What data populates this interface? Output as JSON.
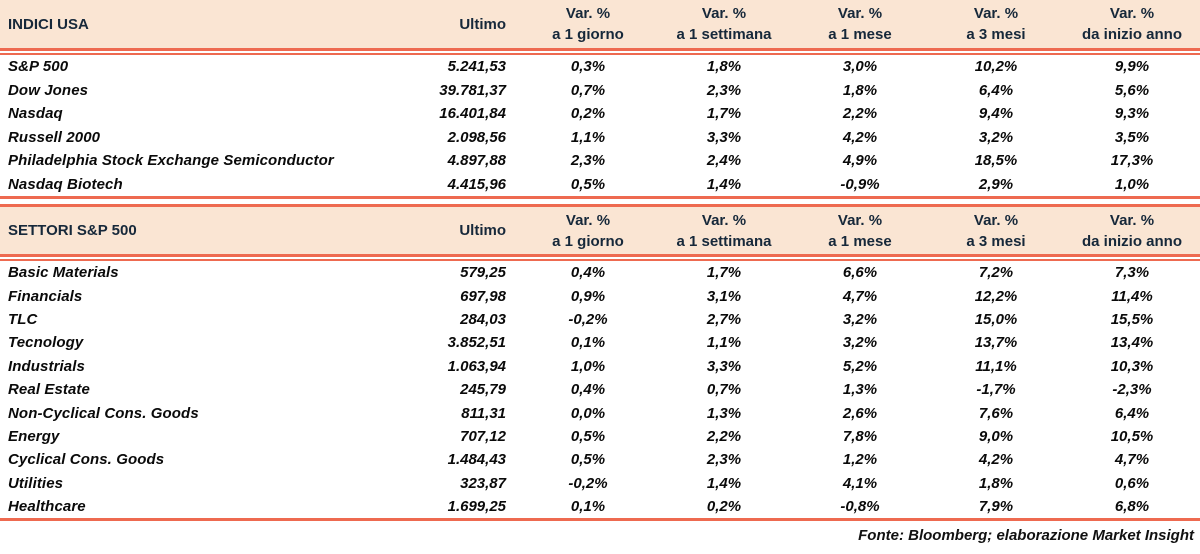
{
  "colors": {
    "header_background": "#fae5d3",
    "rule_salmon": "#ee6a50",
    "header_text": "#16283a",
    "body_text": "#0a0a0a"
  },
  "chart_data": [
    {
      "type": "table",
      "title": "INDICI USA",
      "value_column": "Ultimo",
      "var_column_top": "Var. %",
      "var_column_subs": [
        "a 1 giorno",
        "a 1 settimana",
        "a 1 mese",
        "a 3 mesi",
        "da inizio anno"
      ],
      "rows": [
        {
          "name": "S&P 500",
          "ultimo": "5.241,53",
          "vars": [
            "0,3%",
            "1,8%",
            "3,0%",
            "10,2%",
            "9,9%"
          ]
        },
        {
          "name": "Dow Jones",
          "ultimo": "39.781,37",
          "vars": [
            "0,7%",
            "2,3%",
            "1,8%",
            "6,4%",
            "5,6%"
          ]
        },
        {
          "name": "Nasdaq",
          "ultimo": "16.401,84",
          "vars": [
            "0,2%",
            "1,7%",
            "2,2%",
            "9,4%",
            "9,3%"
          ]
        },
        {
          "name": "Russell 2000",
          "ultimo": "2.098,56",
          "vars": [
            "1,1%",
            "3,3%",
            "4,2%",
            "3,2%",
            "3,5%"
          ]
        },
        {
          "name": "Philadelphia Stock Exchange Semiconductor",
          "ultimo": "4.897,88",
          "vars": [
            "2,3%",
            "2,4%",
            "4,9%",
            "18,5%",
            "17,3%"
          ]
        },
        {
          "name": "Nasdaq Biotech",
          "ultimo": "4.415,96",
          "vars": [
            "0,5%",
            "1,4%",
            "-0,9%",
            "2,9%",
            "1,0%"
          ]
        }
      ]
    },
    {
      "type": "table",
      "title": "SETTORI S&P 500",
      "value_column": "Ultimo",
      "var_column_top": "Var. %",
      "var_column_subs": [
        "a 1 giorno",
        "a 1 settimana",
        "a 1 mese",
        "a 3 mesi",
        "da inizio anno"
      ],
      "rows": [
        {
          "name": "Basic Materials",
          "ultimo": "579,25",
          "vars": [
            "0,4%",
            "1,7%",
            "6,6%",
            "7,2%",
            "7,3%"
          ]
        },
        {
          "name": "Financials",
          "ultimo": "697,98",
          "vars": [
            "0,9%",
            "3,1%",
            "4,7%",
            "12,2%",
            "11,4%"
          ]
        },
        {
          "name": "TLC",
          "ultimo": "284,03",
          "vars": [
            "-0,2%",
            "2,7%",
            "3,2%",
            "15,0%",
            "15,5%"
          ]
        },
        {
          "name": "Tecnology",
          "ultimo": "3.852,51",
          "vars": [
            "0,1%",
            "1,1%",
            "3,2%",
            "13,7%",
            "13,4%"
          ]
        },
        {
          "name": "Industrials",
          "ultimo": "1.063,94",
          "vars": [
            "1,0%",
            "3,3%",
            "5,2%",
            "11,1%",
            "10,3%"
          ]
        },
        {
          "name": "Real Estate",
          "ultimo": "245,79",
          "vars": [
            "0,4%",
            "0,7%",
            "1,3%",
            "-1,7%",
            "-2,3%"
          ]
        },
        {
          "name": "Non-Cyclical Cons. Goods",
          "ultimo": "811,31",
          "vars": [
            "0,0%",
            "1,3%",
            "2,6%",
            "7,6%",
            "6,4%"
          ]
        },
        {
          "name": "Energy",
          "ultimo": "707,12",
          "vars": [
            "0,5%",
            "2,2%",
            "7,8%",
            "9,0%",
            "10,5%"
          ]
        },
        {
          "name": "Cyclical Cons. Goods",
          "ultimo": "1.484,43",
          "vars": [
            "0,5%",
            "2,3%",
            "1,2%",
            "4,2%",
            "4,7%"
          ]
        },
        {
          "name": "Utilities",
          "ultimo": "323,87",
          "vars": [
            "-0,2%",
            "1,4%",
            "4,1%",
            "1,8%",
            "0,6%"
          ]
        },
        {
          "name": "Healthcare",
          "ultimo": "1.699,25",
          "vars": [
            "0,1%",
            "0,2%",
            "-0,8%",
            "7,9%",
            "6,8%"
          ]
        }
      ]
    }
  ],
  "footer": "Fonte: Bloomberg; elaborazione Market Insight"
}
